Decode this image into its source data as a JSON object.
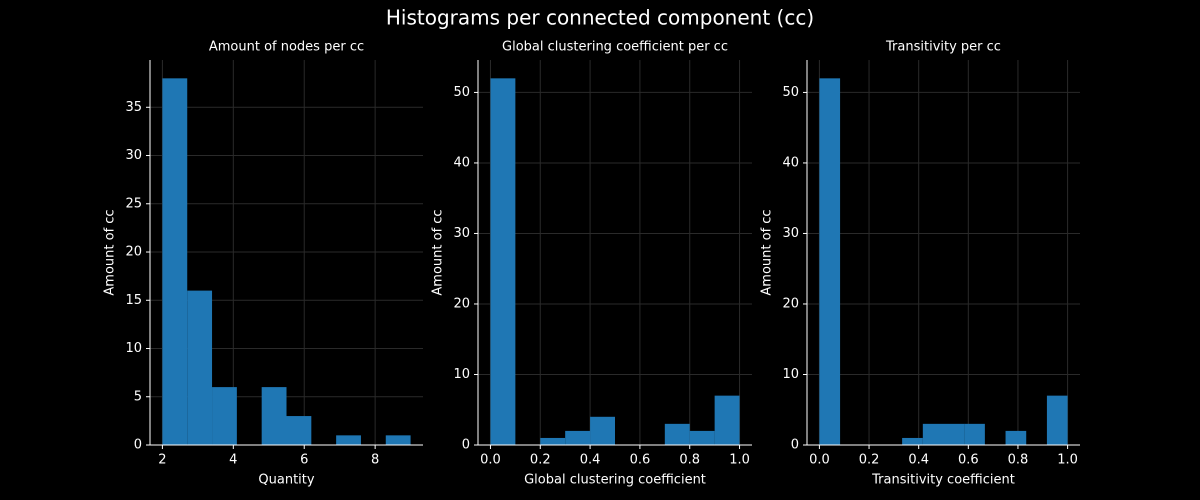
{
  "title": "Histograms per connected component (cc)",
  "chart_data": [
    {
      "type": "histogram",
      "title": "Amount of nodes per cc",
      "xlabel": "Quantity",
      "ylabel": "Amount of cc",
      "bins": [
        2,
        2.7,
        3.4,
        4.1,
        4.8,
        5.5,
        6.2,
        6.9,
        7.6,
        8.3,
        9.0
      ],
      "counts": [
        38,
        16,
        6,
        0,
        6,
        3,
        0,
        1,
        0,
        1
      ],
      "color": "#1f77b4",
      "xlim": [
        1.65,
        9.35
      ],
      "ylim": [
        0,
        39.9
      ],
      "xticks": [
        2,
        4,
        6,
        8
      ],
      "yticks": [
        0,
        5,
        10,
        15,
        20,
        25,
        30,
        35
      ],
      "grid": true
    },
    {
      "type": "histogram",
      "title": "Global clustering coefficient per cc",
      "xlabel": "Global clustering coefficient",
      "ylabel": "Amount of cc",
      "bins": [
        0,
        0.1,
        0.2,
        0.3,
        0.4,
        0.5,
        0.6,
        0.7,
        0.8,
        0.9,
        1.0
      ],
      "counts": [
        52,
        0,
        1,
        2,
        4,
        0,
        0,
        3,
        2,
        7
      ],
      "color": "#1f77b4",
      "xlim": [
        -0.05,
        1.05
      ],
      "ylim": [
        0,
        54.6
      ],
      "xticks": [
        {
          "value": 0,
          "label": "0.0"
        },
        0.2,
        0.4,
        0.6,
        0.8,
        {
          "value": 1,
          "label": "1.0"
        }
      ],
      "yticks": [
        0,
        10,
        20,
        30,
        40,
        50
      ],
      "grid": true
    },
    {
      "type": "histogram",
      "title": "Transitivity per cc",
      "xlabel": "Transitivity coefficient",
      "ylabel": "Amount of cc",
      "bins": [
        0,
        0.0833,
        0.1667,
        0.25,
        0.3333,
        0.4167,
        0.5,
        0.5833,
        0.6667,
        0.75,
        0.8333,
        0.9167,
        1.0
      ],
      "counts": [
        52,
        0,
        0,
        0,
        1,
        3,
        3,
        3,
        0,
        2,
        0,
        7
      ],
      "color": "#1f77b4",
      "xlim": [
        -0.05,
        1.05
      ],
      "ylim": [
        0,
        54.6
      ],
      "xticks": [
        {
          "value": 0,
          "label": "0.0"
        },
        0.2,
        0.4,
        0.6,
        0.8,
        {
          "value": 1,
          "label": "1.0"
        }
      ],
      "yticks": [
        0,
        10,
        20,
        30,
        40,
        50
      ],
      "grid": true
    }
  ]
}
